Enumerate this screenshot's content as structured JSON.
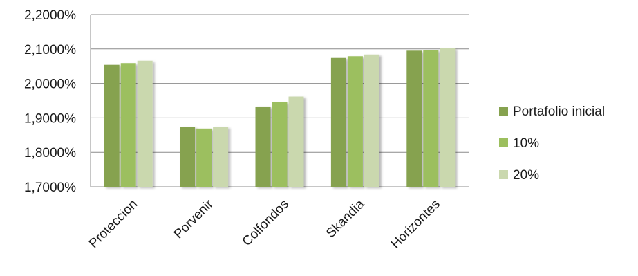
{
  "chart_data": {
    "type": "bar",
    "categories": [
      "Proteccion",
      "Porvenir",
      "Colfondos",
      "Skandia",
      "Horizontes"
    ],
    "series": [
      {
        "name": "Portafolio inicial",
        "color": "#86a24f",
        "values": [
          2.054,
          1.874,
          1.933,
          2.074,
          2.095
        ]
      },
      {
        "name": "10%",
        "color": "#9cbf5e",
        "values": [
          2.059,
          1.869,
          1.945,
          2.079,
          2.097
        ]
      },
      {
        "name": "20%",
        "color": "#cad8ae",
        "values": [
          2.066,
          1.874,
          1.962,
          2.084,
          2.102
        ]
      }
    ],
    "y_ticks": [
      "1,7000%",
      "1,8000%",
      "1,9000%",
      "2,0000%",
      "2,1000%",
      "2,2000%"
    ],
    "ylim": [
      1.7,
      2.2
    ],
    "grid": true,
    "legend_position": "right"
  }
}
